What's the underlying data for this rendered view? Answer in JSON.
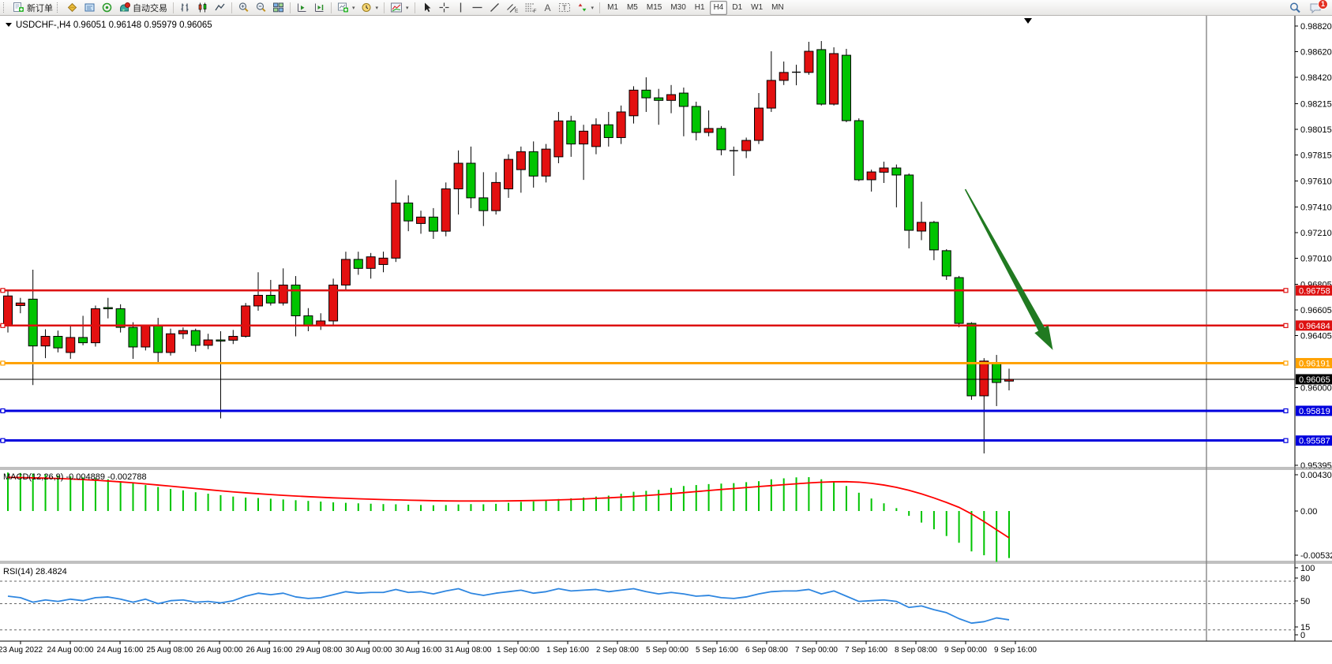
{
  "toolbar": {
    "new_order": "新订单",
    "autotrading": "自动交易",
    "timeframes": [
      "M1",
      "M5",
      "M15",
      "M30",
      "H1",
      "H4",
      "D1",
      "W1",
      "MN"
    ],
    "active_timeframe": "H4",
    "text_tool_glyph": "A",
    "label_tool_glyph": "T",
    "channel_glyph": "E",
    "fibonacci_glyph": "F",
    "notification_count": "1"
  },
  "chart": {
    "symbol_label": "USDCHF-,H4",
    "ohlc_label": "0.96051 0.96148 0.95979 0.96065",
    "macd_label": "MACD(12,26,9)",
    "macd_values": "-0.004889 -0.002788",
    "rsi_label": "RSI(14)",
    "rsi_value": "28.4824"
  },
  "colors": {
    "up_candle": "#e31010",
    "down_candle": "#00c400",
    "candle_border": "#000000",
    "flat_candle": "#000000",
    "level_red": "#dd1111",
    "level_orange": "#ffa200",
    "level_blue": "#0000dd",
    "bid_line": "#000000",
    "macd_histogram": "#00c400",
    "macd_signal": "#ff0000",
    "rsi_line": "#2e86e0",
    "arrow": "#217a21"
  },
  "chart_data": {
    "type": "candlestick",
    "symbol": "USDCHF-",
    "timeframe": "H4",
    "current_bar": {
      "open": 0.96051,
      "high": 0.96148,
      "low": 0.95979,
      "close": 0.96065
    },
    "ylim": [
      0.95395,
      0.9882
    ],
    "price_ticks": [
      "0.98820",
      "0.98620",
      "0.98420",
      "0.98215",
      "0.98015",
      "0.97815",
      "0.97610",
      "0.97410",
      "0.97210",
      "0.97010",
      "0.96805",
      "0.96605",
      "0.96405",
      "0.96000",
      "0.95395"
    ],
    "time_ticks": [
      "23 Aug 2022",
      "24 Aug 00:00",
      "24 Aug 16:00",
      "25 Aug 08:00",
      "26 Aug 00:00",
      "26 Aug 16:00",
      "29 Aug 08:00",
      "30 Aug 00:00",
      "30 Aug 16:00",
      "31 Aug 08:00",
      "1 Sep 00:00",
      "1 Sep 16:00",
      "2 Sep 08:00",
      "5 Sep 00:00",
      "5 Sep 16:00",
      "6 Sep 08:00",
      "7 Sep 00:00",
      "7 Sep 16:00",
      "8 Sep 08:00",
      "9 Sep 00:00",
      "9 Sep 16:00"
    ],
    "levels": [
      {
        "price": 0.96758,
        "label": "0.96758",
        "color_key": "level_red",
        "width": 2.2,
        "handles": true
      },
      {
        "price": 0.96484,
        "label": "0.96484",
        "color_key": "level_red",
        "width": 2.2,
        "handles": true
      },
      {
        "price": 0.96191,
        "label": "0.96191",
        "color_key": "level_orange",
        "width": 3,
        "handles": true
      },
      {
        "price": 0.96065,
        "label": "0.96065",
        "color_key": "bid_line",
        "width": 1,
        "handles": false
      },
      {
        "price": 0.95819,
        "label": "0.95819",
        "color_key": "level_blue",
        "width": 3,
        "handles": true
      },
      {
        "price": 0.95587,
        "label": "0.95587",
        "color_key": "level_blue",
        "width": 3,
        "handles": true
      }
    ],
    "candles": [
      [
        "u",
        0.9648,
        0.9676,
        0.9643,
        0.96715
      ],
      [
        "u",
        0.9664,
        0.967,
        0.9658,
        0.9666
      ],
      [
        "d",
        0.9669,
        0.9692,
        0.9602,
        0.96325
      ],
      [
        "u",
        0.96325,
        0.96455,
        0.9623,
        0.964
      ],
      [
        "d",
        0.964,
        0.96445,
        0.96275,
        0.9631
      ],
      [
        "u",
        0.96274,
        0.96483,
        0.96225,
        0.96391
      ],
      [
        "d",
        0.96391,
        0.9656,
        0.9633,
        0.9635
      ],
      [
        "u",
        0.9635,
        0.9664,
        0.9632,
        0.96615
      ],
      [
        "d",
        0.96624,
        0.967,
        0.9654,
        0.96624
      ],
      [
        "d",
        0.96615,
        0.9665,
        0.9643,
        0.9647
      ],
      [
        "d",
        0.9647,
        0.9651,
        0.96225,
        0.96317
      ],
      [
        "u",
        0.96317,
        0.9649,
        0.9629,
        0.96483
      ],
      [
        "d",
        0.96483,
        0.96544,
        0.96194,
        0.96274
      ],
      [
        "u",
        0.96274,
        0.9646,
        0.9625,
        0.9642
      ],
      [
        "u",
        0.9642,
        0.9647,
        0.9638,
        0.96445
      ],
      [
        "d",
        0.96445,
        0.9646,
        0.9628,
        0.9633
      ],
      [
        "u",
        0.9633,
        0.9642,
        0.963,
        0.96372
      ],
      [
        "d",
        0.96372,
        0.9644,
        0.9576,
        0.9637
      ],
      [
        "u",
        0.9637,
        0.9645,
        0.9634,
        0.964
      ],
      [
        "u",
        0.964,
        0.9666,
        0.9639,
        0.96637
      ],
      [
        "u",
        0.96637,
        0.969,
        0.966,
        0.9672
      ],
      [
        "d",
        0.9672,
        0.9684,
        0.9664,
        0.9666
      ],
      [
        "u",
        0.9666,
        0.9693,
        0.9664,
        0.968
      ],
      [
        "d",
        0.968,
        0.9687,
        0.964,
        0.9656
      ],
      [
        "d",
        0.9656,
        0.9662,
        0.9644,
        0.96484
      ],
      [
        "u",
        0.96484,
        0.9658,
        0.9645,
        0.9652
      ],
      [
        "u",
        0.9652,
        0.9685,
        0.9648,
        0.968
      ],
      [
        "u",
        0.968,
        0.9706,
        0.9676,
        0.97
      ],
      [
        "d",
        0.97,
        0.9706,
        0.9688,
        0.9693
      ],
      [
        "u",
        0.9693,
        0.9705,
        0.9685,
        0.9702
      ],
      [
        "u",
        0.9696,
        0.9706,
        0.969,
        0.9701
      ],
      [
        "u",
        0.9701,
        0.9762,
        0.9698,
        0.9744
      ],
      [
        "d",
        0.9744,
        0.975,
        0.9722,
        0.973
      ],
      [
        "u",
        0.9728,
        0.9738,
        0.972,
        0.9733
      ],
      [
        "d",
        0.9733,
        0.974,
        0.9716,
        0.9722
      ],
      [
        "u",
        0.9722,
        0.976,
        0.9718,
        0.9755
      ],
      [
        "u",
        0.9755,
        0.9785,
        0.9735,
        0.9775
      ],
      [
        "d",
        0.9775,
        0.9788,
        0.974,
        0.9748
      ],
      [
        "d",
        0.9748,
        0.9768,
        0.9726,
        0.9738
      ],
      [
        "u",
        0.9738,
        0.9768,
        0.9735,
        0.976
      ],
      [
        "u",
        0.9755,
        0.9782,
        0.9748,
        0.9778
      ],
      [
        "u",
        0.977,
        0.9788,
        0.9752,
        0.9784
      ],
      [
        "d",
        0.9784,
        0.9792,
        0.9756,
        0.9765
      ],
      [
        "u",
        0.9765,
        0.979,
        0.976,
        0.9786
      ],
      [
        "u",
        0.978,
        0.9815,
        0.9775,
        0.9808
      ],
      [
        "d",
        0.9808,
        0.9812,
        0.978,
        0.979
      ],
      [
        "u",
        0.979,
        0.9805,
        0.9762,
        0.98
      ],
      [
        "u",
        0.9788,
        0.981,
        0.9782,
        0.9805
      ],
      [
        "d",
        0.9805,
        0.9815,
        0.9788,
        0.9795
      ],
      [
        "u",
        0.9795,
        0.982,
        0.979,
        0.9815
      ],
      [
        "u",
        0.9812,
        0.9835,
        0.9806,
        0.9832
      ],
      [
        "d",
        0.9832,
        0.9842,
        0.9815,
        0.9826
      ],
      [
        "d",
        0.9826,
        0.9833,
        0.9805,
        0.9824
      ],
      [
        "u",
        0.9824,
        0.9836,
        0.9814,
        0.98285
      ],
      [
        "d",
        0.98297,
        0.9834,
        0.9796,
        0.98193
      ],
      [
        "d",
        0.98193,
        0.9823,
        0.97928,
        0.9799
      ],
      [
        "u",
        0.9799,
        0.98162,
        0.9796,
        0.98021
      ],
      [
        "d",
        0.98021,
        0.9804,
        0.97812,
        0.97855
      ],
      [
        "f",
        0.9786,
        0.9788,
        0.97652,
        0.97848
      ],
      [
        "u",
        0.97848,
        0.9795,
        0.9779,
        0.97928
      ],
      [
        "u",
        0.97928,
        0.98297,
        0.979,
        0.9818
      ],
      [
        "u",
        0.9818,
        0.98623,
        0.9815,
        0.98396
      ],
      [
        "u",
        0.98396,
        0.98543,
        0.9836,
        0.98458
      ],
      [
        "f",
        0.9845,
        0.98518,
        0.98358,
        0.9846
      ],
      [
        "u",
        0.98458,
        0.98697,
        0.9844,
        0.98623
      ],
      [
        "d",
        0.98636,
        0.98703,
        0.982,
        0.98211
      ],
      [
        "u",
        0.98211,
        0.98654,
        0.982,
        0.98605
      ],
      [
        "d",
        0.98592,
        0.98642,
        0.9807,
        0.98082
      ],
      [
        "d",
        0.98082,
        0.981,
        0.9761,
        0.97621
      ],
      [
        "u",
        0.97621,
        0.977,
        0.97529,
        0.97682
      ],
      [
        "u",
        0.9768,
        0.97762,
        0.97596,
        0.97713
      ],
      [
        "d",
        0.97713,
        0.9774,
        0.97406,
        0.97658
      ],
      [
        "d",
        0.97658,
        0.9767,
        0.97086,
        0.97227
      ],
      [
        "u",
        0.97221,
        0.9745,
        0.9715,
        0.97289
      ],
      [
        "d",
        0.97289,
        0.973,
        0.96994,
        0.97074
      ],
      [
        "d",
        0.97068,
        0.9708,
        0.9684,
        0.96871
      ],
      [
        "d",
        0.96858,
        0.96871,
        0.96471,
        0.96501
      ],
      [
        "d",
        0.96501,
        0.9651,
        0.95905,
        0.95936
      ],
      [
        "u",
        0.95936,
        0.9623,
        0.95487,
        0.96207
      ],
      [
        "d",
        0.96194,
        0.96255,
        0.95856,
        0.9604
      ],
      [
        "u",
        0.96051,
        0.96148,
        0.95979,
        0.96065
      ]
    ],
    "macd": {
      "params": [
        12,
        26,
        9
      ],
      "current_macd": -0.004889,
      "current_signal": -0.002788,
      "scale_labels": [
        "0.004304",
        "0.00",
        "-0.005326"
      ],
      "histogram": [
        0.004,
        0.00395,
        0.0039,
        0.0038,
        0.0037,
        0.0036,
        0.0035,
        0.0034,
        0.0033,
        0.0031,
        0.0029,
        0.0027,
        0.0025,
        0.0023,
        0.00215,
        0.00195,
        0.0018,
        0.00165,
        0.0015,
        0.0014,
        0.00135,
        0.00128,
        0.0012,
        0.00112,
        0.00105,
        0.00098,
        0.0009,
        0.00085,
        0.0008,
        0.00076,
        0.00072,
        0.0007,
        0.00066,
        0.00063,
        0.0006,
        0.00062,
        0.00068,
        0.00072,
        0.0007,
        0.00075,
        0.00085,
        0.00095,
        0.001,
        0.0011,
        0.00125,
        0.00132,
        0.0014,
        0.0015,
        0.0016,
        0.0018,
        0.002,
        0.0021,
        0.0022,
        0.0024,
        0.0026,
        0.0027,
        0.0028,
        0.00285,
        0.0029,
        0.003,
        0.0031,
        0.0033,
        0.0034,
        0.0035,
        0.00352,
        0.0033,
        0.0031,
        0.0026,
        0.0019,
        0.0013,
        0.0008,
        0.0003,
        -0.0005,
        -0.0012,
        -0.0019,
        -0.0026,
        -0.0033,
        -0.0042,
        -0.0046,
        -0.0053,
        -0.004889
      ],
      "signal": [
        0.0035,
        0.00348,
        0.00345,
        0.00342,
        0.00338,
        0.00333,
        0.00327,
        0.0032,
        0.00312,
        0.00303,
        0.00293,
        0.00282,
        0.0027,
        0.00258,
        0.00246,
        0.00234,
        0.00222,
        0.0021,
        0.00199,
        0.00189,
        0.0018,
        0.00171,
        0.00163,
        0.00156,
        0.00149,
        0.00143,
        0.00137,
        0.00132,
        0.00127,
        0.00123,
        0.00119,
        0.00116,
        0.00113,
        0.0011,
        0.00107,
        0.00105,
        0.00104,
        0.00104,
        0.00104,
        0.00104,
        0.00105,
        0.00107,
        0.00109,
        0.00112,
        0.00116,
        0.0012,
        0.00125,
        0.00131,
        0.00137,
        0.00144,
        0.00152,
        0.00161,
        0.0017,
        0.0018,
        0.00191,
        0.00202,
        0.00213,
        0.00224,
        0.00234,
        0.00244,
        0.00254,
        0.00264,
        0.00274,
        0.00283,
        0.00292,
        0.00299,
        0.00304,
        0.00305,
        0.003,
        0.00288,
        0.0027,
        0.00246,
        0.00215,
        0.00178,
        0.00136,
        0.00089,
        0.00038,
        -0.0003,
        -0.0011,
        -0.00195,
        -0.002788
      ]
    },
    "rsi": {
      "period": 14,
      "current": 28.4824,
      "levels": [
        80,
        50,
        15
      ],
      "scale_labels": [
        "100",
        "80",
        "50",
        "15",
        "0"
      ],
      "values": [
        60,
        58,
        52,
        55,
        53,
        56,
        54,
        58,
        59,
        56,
        52,
        56,
        50,
        54,
        55,
        52,
        53,
        51,
        54,
        60,
        64,
        62,
        64,
        59,
        57,
        58,
        62,
        66,
        64,
        65,
        65,
        69,
        65,
        66,
        63,
        67,
        70,
        64,
        61,
        64,
        66,
        68,
        64,
        66,
        70,
        67,
        68,
        69,
        66,
        68,
        70,
        66,
        63,
        65,
        63,
        60,
        61,
        58,
        57,
        59,
        63,
        66,
        67,
        67,
        69,
        63,
        67,
        60,
        53,
        54,
        55,
        53,
        45,
        47,
        42,
        38,
        30,
        24,
        26,
        31,
        28.4824
      ]
    },
    "annotation_arrow": {
      "from_bar": 76.5,
      "from_price": 0.97547,
      "to_bar": 83.5,
      "to_price": 0.96293
    }
  }
}
